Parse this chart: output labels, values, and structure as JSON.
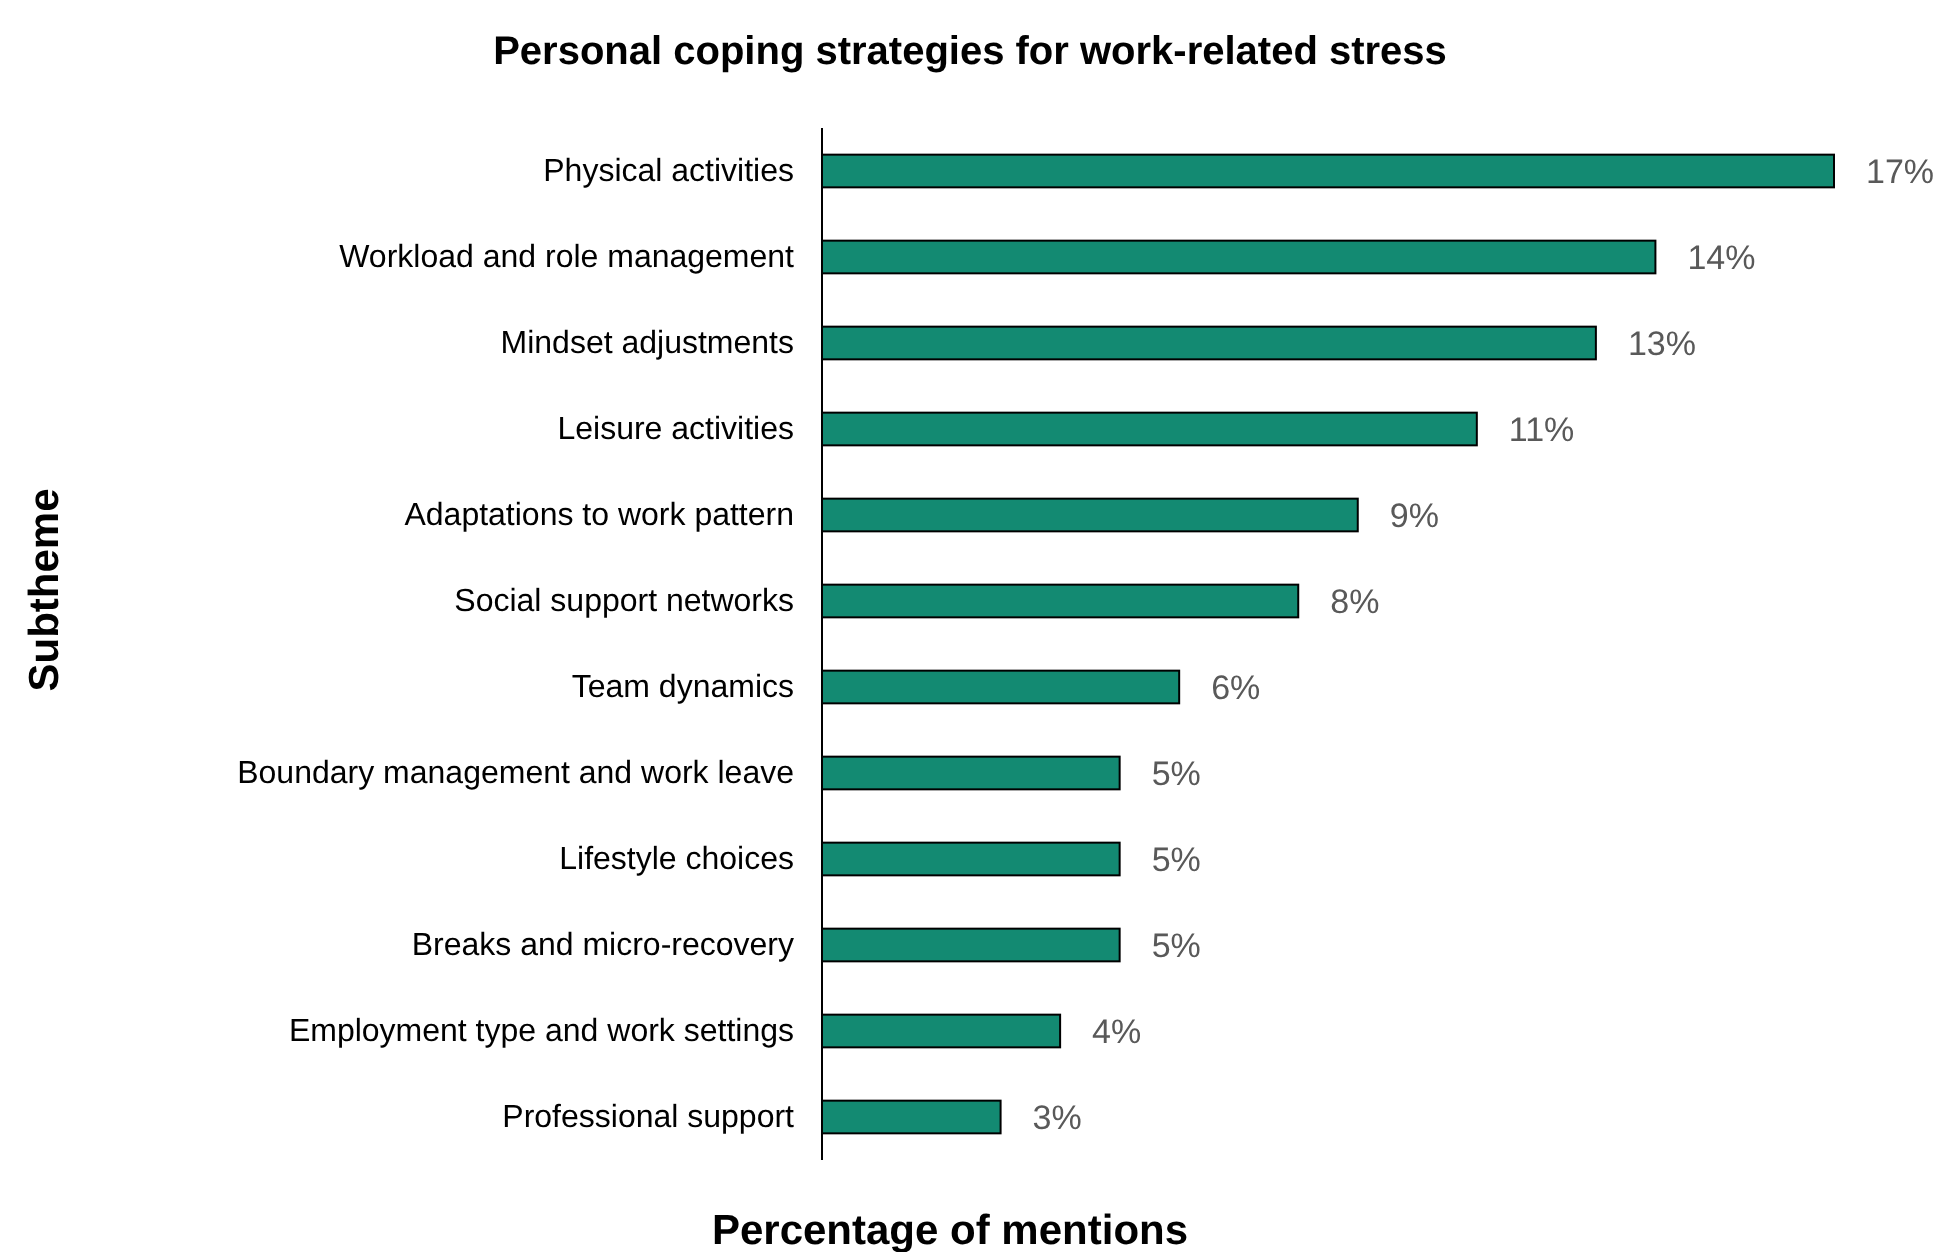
{
  "chart_data": {
    "type": "bar",
    "orientation": "horizontal",
    "title": "Personal coping strategies for work-related stress",
    "xlabel": "Percentage of mentions",
    "ylabel": "Subtheme",
    "categories": [
      "Physical activities",
      "Workload and role management",
      "Mindset adjustments",
      "Leisure activities",
      "Adaptations to work pattern",
      "Social support networks",
      "Team dynamics",
      "Boundary management and work leave",
      "Lifestyle choices",
      "Breaks and micro-recovery",
      "Employment type and work settings",
      "Professional support"
    ],
    "values": [
      17,
      14,
      13,
      11,
      9,
      8,
      6,
      5,
      5,
      5,
      4,
      3
    ],
    "value_labels": [
      "17%",
      "14%",
      "13%",
      "11%",
      "9%",
      "8%",
      "6%",
      "5%",
      "5%",
      "5%",
      "4%",
      "3%"
    ],
    "color": "#138a72",
    "tick_labels": "y"
  }
}
